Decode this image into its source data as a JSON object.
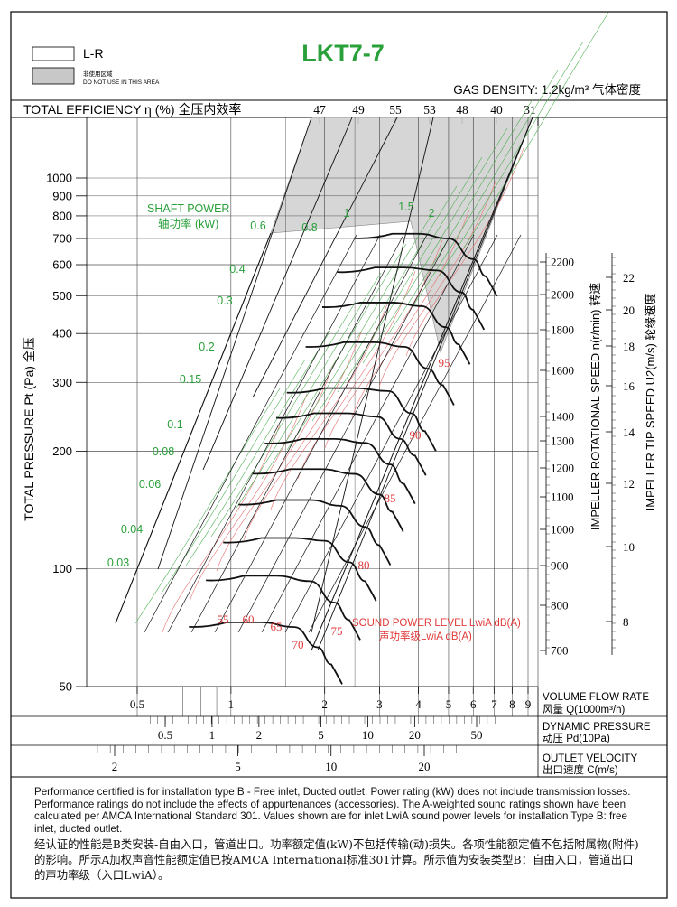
{
  "title": "LKT7-7",
  "legend": {
    "lr_label": "L-R",
    "grey_label_cn": "非使用区域",
    "grey_label_en": "DO NOT USE IN THIS AREA"
  },
  "gas_density": "GAS DENSITY: 1.2kg/m³ 气体密度",
  "efficiency": {
    "label": "TOTAL EFFICIENCY η (%) 全压内效率",
    "values": [
      "47",
      "49",
      "55",
      "53",
      "48",
      "40",
      "31"
    ]
  },
  "axes": {
    "y_label": "TOTAL PRESSURE Pt (Pa) 全压",
    "y_ticks": [
      "1000",
      "900",
      "800",
      "700",
      "600",
      "500",
      "400",
      "300",
      "200",
      "100",
      "50"
    ],
    "y_tick_values": [
      1000,
      900,
      800,
      700,
      600,
      500,
      400,
      300,
      200,
      100,
      50
    ],
    "ylim": [
      50,
      1400
    ],
    "y_scale": "log",
    "rpm_label": "IMPELLER ROTATIONAL SPEED n(r/min) 转速",
    "rpm_ticks": [
      "2200",
      "2000",
      "1800",
      "1600",
      "1400",
      "1300",
      "1200",
      "1100",
      "1000",
      "900",
      "800",
      "700"
    ],
    "tip_label": "IMPELLER TIP SPEED U2(m/s) 轮缘速度",
    "tip_ticks": [
      "22",
      "20",
      "18",
      "16",
      "14",
      "12",
      "10",
      "8"
    ],
    "flow_label_en": "VOLUME FLOW RATE",
    "flow_label_cn": "风量 Q(1000m³/h)",
    "flow_ticks": [
      "0.5",
      "1",
      "2",
      "3",
      "4",
      "5",
      "6",
      "7",
      "8",
      "9"
    ],
    "flow_tick_values": [
      0.5,
      1,
      2,
      3,
      4,
      5,
      6,
      7,
      8,
      9
    ],
    "pd_label_en": "DYNAMIC PRESSURE",
    "pd_label_cn": "动压 Pd(10Pa)",
    "pd_ticks": [
      "0.5",
      "1",
      "2",
      "5",
      "10",
      "20",
      "50"
    ],
    "pd_tick_values": [
      0.5,
      1,
      2,
      5,
      10,
      20,
      50
    ],
    "vel_label_en": "OUTLET VELOCITY",
    "vel_label_cn": "出口速度 C(m/s)",
    "vel_ticks": [
      "2",
      "5",
      "10",
      "20"
    ],
    "vel_tick_values": [
      2,
      5,
      10,
      20
    ]
  },
  "shaft_power": {
    "label_en": "SHAFT POWER",
    "label_cn": "轴功率 (kW)",
    "values": [
      "0.6",
      "0.8",
      "1",
      "1.5",
      "2",
      "0.4",
      "0.3",
      "0.2",
      "0.15",
      "0.1",
      "0.08",
      "0.06",
      "0.04",
      "0.03"
    ]
  },
  "sound": {
    "label_en": "SOUND POWER LEVEL LwiA dB(A)",
    "label_cn": "声功率级LwiA dB(A)",
    "values": [
      "95",
      "90",
      "85",
      "80",
      "75",
      "70",
      "65",
      "60",
      "55"
    ]
  },
  "chart_data": {
    "type": "line",
    "title": "LKT7-7",
    "x_label": "VOLUME FLOW RATE 风量 Q(1000m³/h)",
    "y_label": "TOTAL PRESSURE Pt (Pa) 全压",
    "x_scale": "log",
    "y_scale": "log",
    "xlim": [
      0.4,
      9.5
    ],
    "ylim": [
      50,
      1400
    ],
    "grid": true,
    "series": [
      {
        "rpm": 2200,
        "x": [
          3.3,
          4.0,
          5.0,
          6.0,
          6.6
        ],
        "y": [
          720,
          720,
          700,
          620,
          560
        ]
      },
      {
        "rpm": 2000,
        "x": [
          2.9,
          3.6,
          4.6,
          5.5,
          6.0
        ],
        "y": [
          590,
          590,
          580,
          510,
          460
        ]
      },
      {
        "rpm": 1800,
        "x": [
          2.6,
          3.3,
          4.1,
          4.9,
          5.4
        ],
        "y": [
          480,
          480,
          470,
          415,
          375
        ]
      },
      {
        "rpm": 1600,
        "x": [
          2.3,
          2.9,
          3.6,
          4.3,
          4.8
        ],
        "y": [
          380,
          380,
          370,
          325,
          295
        ]
      },
      {
        "rpm": 1400,
        "x": [
          2.0,
          2.5,
          3.2,
          3.8,
          4.2
        ],
        "y": [
          290,
          290,
          285,
          250,
          225
        ]
      },
      {
        "rpm": 1300,
        "x": [
          1.85,
          2.35,
          2.95,
          3.5,
          3.9
        ],
        "y": [
          250,
          250,
          245,
          215,
          195
        ]
      },
      {
        "rpm": 1200,
        "x": [
          1.7,
          2.15,
          2.7,
          3.25,
          3.6
        ],
        "y": [
          215,
          215,
          210,
          185,
          165
        ]
      },
      {
        "rpm": 1100,
        "x": [
          1.55,
          1.95,
          2.5,
          3.0,
          3.3
        ],
        "y": [
          180,
          180,
          175,
          155,
          140
        ]
      },
      {
        "rpm": 1000,
        "x": [
          1.4,
          1.8,
          2.25,
          2.7,
          3.0
        ],
        "y": [
          150,
          150,
          145,
          128,
          115
        ]
      },
      {
        "rpm": 900,
        "x": [
          1.25,
          1.6,
          2.0,
          2.4,
          2.7
        ],
        "y": [
          120,
          120,
          118,
          104,
          93
        ]
      },
      {
        "rpm": 800,
        "x": [
          1.1,
          1.4,
          1.8,
          2.15,
          2.4
        ],
        "y": [
          96,
          96,
          93,
          82,
          74
        ]
      },
      {
        "rpm": 700,
        "x": [
          0.97,
          1.25,
          1.6,
          1.9,
          2.1
        ],
        "y": [
          73,
          73,
          71,
          63,
          57
        ]
      }
    ]
  }
}
